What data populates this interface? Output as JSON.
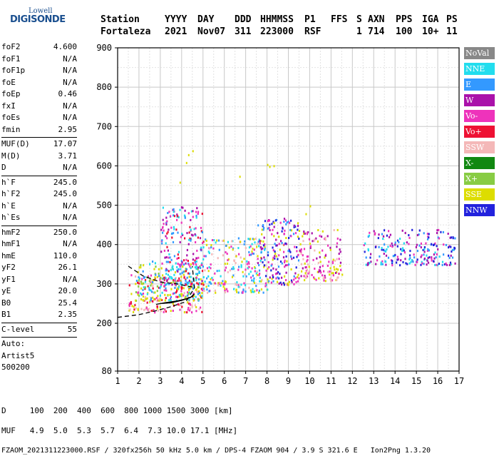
{
  "logo": {
    "top": "Lowell",
    "bottom": "DIGISONDE"
  },
  "header": {
    "row1": [
      "Station",
      "YYYY",
      "DAY",
      "DDD",
      "HHMMSS",
      "P1",
      "FFS",
      "S",
      "AXN",
      "PPS",
      "IGA",
      "PS"
    ],
    "row2": [
      "Fortaleza",
      "2021",
      "Nov07",
      "311",
      "223000",
      "RSF",
      "",
      "1",
      "714",
      "100",
      "10+",
      "11"
    ]
  },
  "params": [
    {
      "name": "foF2",
      "value": "4.600"
    },
    {
      "name": "foF1",
      "value": "N/A"
    },
    {
      "name": "foF1p",
      "value": "N/A"
    },
    {
      "name": "foE",
      "value": "N/A"
    },
    {
      "name": "foEp",
      "value": "0.46"
    },
    {
      "name": "fxI",
      "value": "N/A"
    },
    {
      "name": "foEs",
      "value": "N/A"
    },
    {
      "name": "fmin",
      "value": "2.95"
    },
    {
      "sep": true
    },
    {
      "name": "MUF(D)",
      "value": "17.07"
    },
    {
      "name": "M(D)",
      "value": "3.71"
    },
    {
      "name": "D",
      "value": "N/A"
    },
    {
      "sep": true
    },
    {
      "name": "h`F",
      "value": "245.0"
    },
    {
      "name": "h`F2",
      "value": "245.0"
    },
    {
      "name": "h`E",
      "value": "N/A"
    },
    {
      "name": "h`Es",
      "value": "N/A"
    },
    {
      "sep": true
    },
    {
      "name": "hmF2",
      "value": "250.0"
    },
    {
      "name": "hmF1",
      "value": "N/A"
    },
    {
      "name": "hmE",
      "value": "110.0"
    },
    {
      "name": "yF2",
      "value": "26.1"
    },
    {
      "name": "yF1",
      "value": "N/A"
    },
    {
      "name": "yE",
      "value": "20.0"
    },
    {
      "name": "B0",
      "value": "25.4"
    },
    {
      "name": "B1",
      "value": "2.35"
    },
    {
      "sep": true
    },
    {
      "name": "C-level",
      "value": "55"
    },
    {
      "sep": true
    },
    {
      "name": "Auto:",
      "value": ""
    },
    {
      "name": "Artist5",
      "value": ""
    },
    {
      "name": "500200",
      "value": ""
    }
  ],
  "legend": [
    {
      "label": "NoVal",
      "color": "#888888"
    },
    {
      "label": "NNE",
      "color": "#22ddee"
    },
    {
      "label": "E",
      "color": "#3399ff"
    },
    {
      "label": "W",
      "color": "#aa11aa"
    },
    {
      "label": "Vo-",
      "color": "#ee33bb"
    },
    {
      "label": "Vo+",
      "color": "#ee1133"
    },
    {
      "label": "SSW",
      "color": "#f4b8b8"
    },
    {
      "label": "X-",
      "color": "#118811"
    },
    {
      "label": "X+",
      "color": "#88cc44"
    },
    {
      "label": "SSE",
      "color": "#dddd00"
    },
    {
      "label": "NNW",
      "color": "#2222dd"
    }
  ],
  "footer": {
    "line1": "D     100  200  400  600  800 1000 1500 3000 [km]",
    "line2": "MUF   4.9  5.0  5.3  5.7  6.4  7.3 10.0 17.1 [MHz]",
    "line3": "FZAOM_2021311223000.RSF / 320fx256h 50 kHz 5.0 km / DPS-4 FZAOM 904 / 3.9 S 321.6 E   Ion2Png 1.3.20"
  },
  "chart_data": {
    "type": "scatter",
    "xlim": [
      1,
      17
    ],
    "ylim": [
      80,
      900
    ],
    "y_ticks": [
      80,
      200,
      300,
      400,
      500,
      600,
      700,
      800,
      900
    ],
    "x_ticks": [
      1,
      2,
      3,
      4,
      5,
      6,
      7,
      8,
      9,
      10,
      11,
      12,
      13,
      14,
      15,
      16,
      17
    ],
    "grid": true,
    "legend_position": "right",
    "clusters": [
      {
        "x": [
          1.5,
          5.0
        ],
        "y": [
          230,
          330
        ],
        "colors": [
          "SSW",
          "Vo+",
          "Vo-",
          "SSE"
        ]
      },
      {
        "x": [
          1.8,
          5.0
        ],
        "y": [
          260,
          360
        ],
        "colors": [
          "SSE",
          "X+",
          "NNE",
          "E"
        ]
      },
      {
        "x": [
          3.0,
          5.0
        ],
        "y": [
          300,
          500
        ],
        "colors": [
          "Vo-",
          "W",
          "Vo+",
          "NNE",
          "E"
        ]
      },
      {
        "x": [
          5.0,
          8.0
        ],
        "y": [
          280,
          420
        ],
        "colors": [
          "SSE",
          "SSW",
          "NNE",
          "E",
          "Vo-"
        ]
      },
      {
        "x": [
          7.5,
          9.5
        ],
        "y": [
          300,
          470
        ],
        "colors": [
          "NNW",
          "W",
          "Vo-",
          "SSE",
          "E"
        ]
      },
      {
        "x": [
          9.5,
          11.5
        ],
        "y": [
          310,
          440
        ],
        "colors": [
          "SSE",
          "SSW",
          "W",
          "Vo-"
        ]
      },
      {
        "x": [
          12.5,
          16.8
        ],
        "y": [
          350,
          440
        ],
        "colors": [
          "W",
          "Vo-",
          "NNE",
          "E",
          "NNW"
        ]
      }
    ],
    "trace_solid": [
      [
        3.0,
        250
      ],
      [
        3.5,
        252
      ],
      [
        4.0,
        258
      ],
      [
        4.4,
        265
      ],
      [
        4.6,
        275
      ],
      [
        4.5,
        268
      ],
      [
        4.2,
        262
      ],
      [
        3.8,
        257
      ],
      [
        3.2,
        252
      ],
      [
        2.8,
        248
      ]
    ],
    "trace_dashed": [
      [
        1.0,
        215
      ],
      [
        2.0,
        222
      ],
      [
        2.8,
        232
      ],
      [
        3.5,
        242
      ],
      [
        4.2,
        255
      ],
      [
        4.6,
        290
      ],
      [
        4.5,
        345
      ]
    ],
    "trace_dashed2": [
      [
        1.5,
        345
      ],
      [
        2.2,
        320
      ],
      [
        3.0,
        305
      ],
      [
        3.8,
        300
      ],
      [
        4.5,
        292
      ]
    ]
  }
}
